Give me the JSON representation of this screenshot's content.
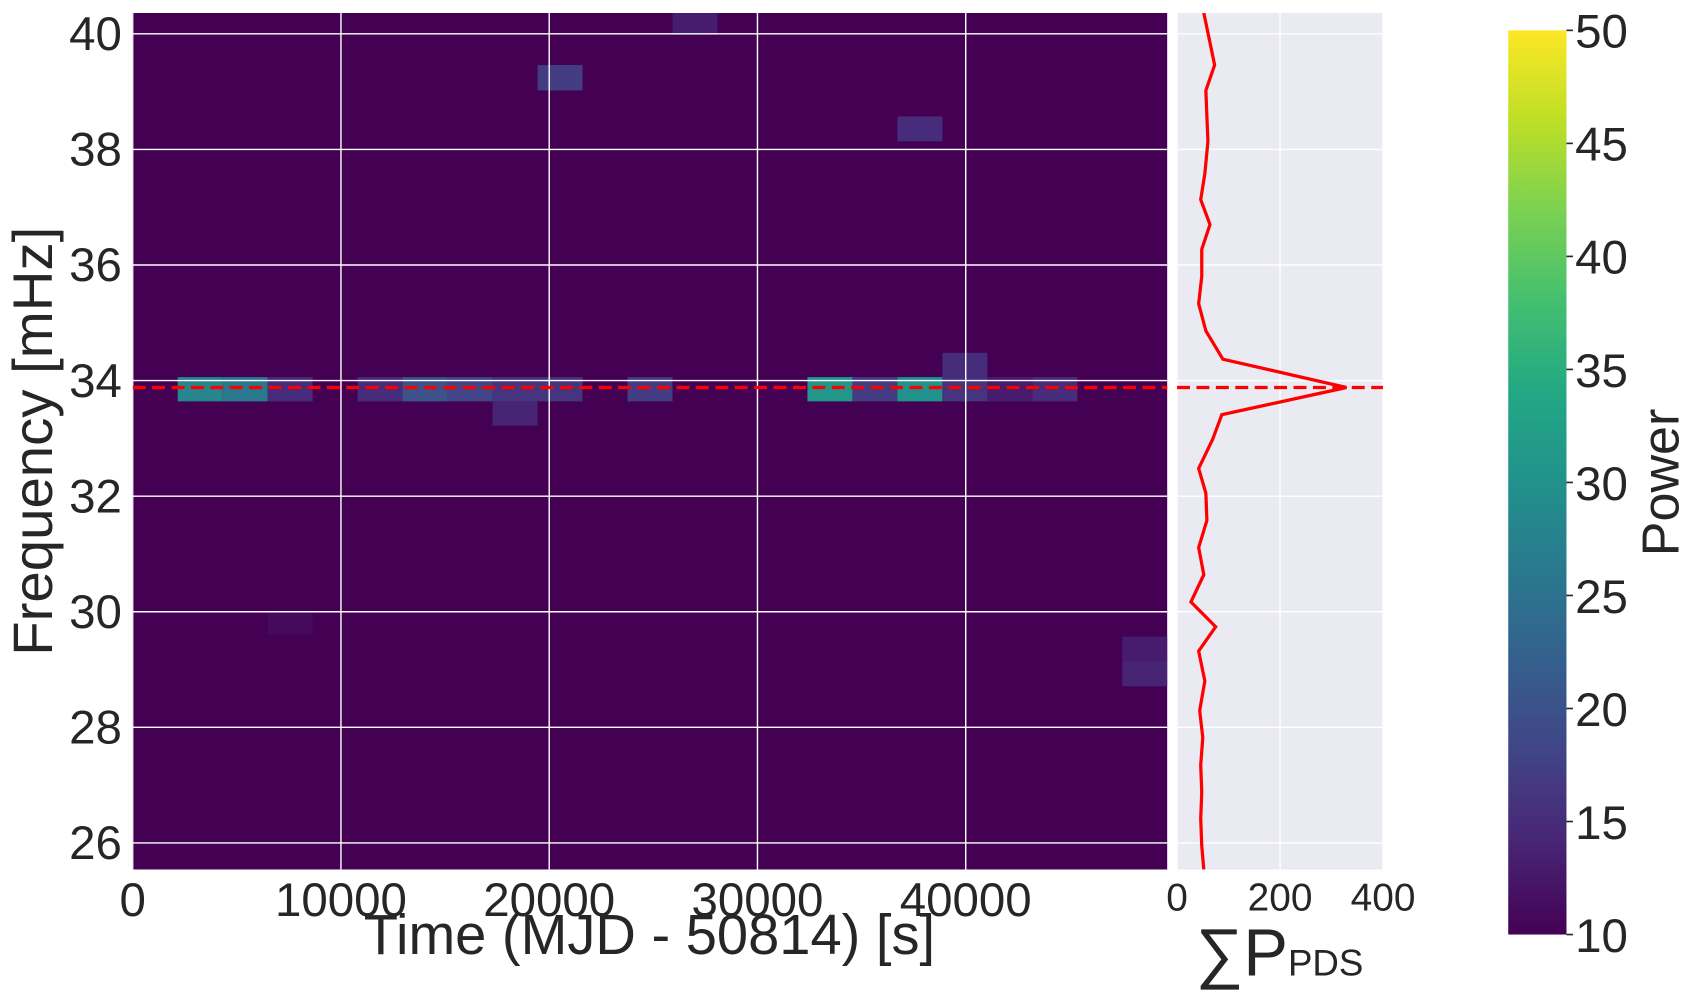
{
  "chart_data": [
    {
      "type": "heatmap",
      "xlabel": "Time (MJD - 50814) [s]",
      "ylabel": "Frequency [mHz]",
      "xlim": [
        0,
        49680
      ],
      "ylim": [
        25.54,
        40.36
      ],
      "xticks": [
        0,
        10000,
        20000,
        30000,
        40000
      ],
      "yticks": [
        26,
        28,
        30,
        32,
        34,
        36,
        38,
        40
      ],
      "grid": true,
      "colormap": "viridis",
      "background": 10,
      "cells": [
        {
          "t": [
            2160,
            4320
          ],
          "f": [
            33.64,
            34.06
          ],
          "value": 28
        },
        {
          "t": [
            4320,
            6480
          ],
          "f": [
            33.64,
            34.06
          ],
          "value": 26
        },
        {
          "t": [
            6480,
            8640
          ],
          "f": [
            33.64,
            34.06
          ],
          "value": 15
        },
        {
          "t": [
            10800,
            12960
          ],
          "f": [
            33.64,
            34.06
          ],
          "value": 15
        },
        {
          "t": [
            12960,
            15120
          ],
          "f": [
            33.64,
            34.06
          ],
          "value": 20
        },
        {
          "t": [
            15120,
            17280
          ],
          "f": [
            33.64,
            34.06
          ],
          "value": 18
        },
        {
          "t": [
            17280,
            19440
          ],
          "f": [
            33.64,
            34.06
          ],
          "value": 16
        },
        {
          "t": [
            19440,
            21600
          ],
          "f": [
            33.64,
            34.06
          ],
          "value": 16
        },
        {
          "t": [
            23760,
            25920
          ],
          "f": [
            33.64,
            34.06
          ],
          "value": 17
        },
        {
          "t": [
            32400,
            34560
          ],
          "f": [
            33.64,
            34.06
          ],
          "value": 31
        },
        {
          "t": [
            34560,
            36720
          ],
          "f": [
            33.64,
            34.06
          ],
          "value": 17
        },
        {
          "t": [
            36720,
            38880
          ],
          "f": [
            33.64,
            34.06
          ],
          "value": 30
        },
        {
          "t": [
            38880,
            41040
          ],
          "f": [
            33.64,
            34.06
          ],
          "value": 16
        },
        {
          "t": [
            41040,
            43200
          ],
          "f": [
            33.64,
            34.06
          ],
          "value": 13
        },
        {
          "t": [
            43200,
            45360
          ],
          "f": [
            33.64,
            34.06
          ],
          "value": 15
        },
        {
          "t": [
            38880,
            41040
          ],
          "f": [
            34.06,
            34.48
          ],
          "value": 15
        },
        {
          "t": [
            17280,
            19440
          ],
          "f": [
            33.22,
            33.64
          ],
          "value": 14
        },
        {
          "t": [
            19440,
            21600
          ],
          "f": [
            39.02,
            39.46
          ],
          "value": 17
        },
        {
          "t": [
            36720,
            38880
          ],
          "f": [
            38.14,
            38.57
          ],
          "value": 15
        },
        {
          "t": [
            25920,
            28080
          ],
          "f": [
            39.98,
            40.41
          ],
          "value": 13
        },
        {
          "t": [
            6480,
            8640
          ],
          "f": [
            29.6,
            29.98
          ],
          "value": 11
        },
        {
          "t": [
            47520,
            49680
          ],
          "f": [
            29.14,
            29.57
          ],
          "value": 13
        },
        {
          "t": [
            47520,
            49680
          ],
          "f": [
            28.71,
            29.14
          ],
          "value": 14
        }
      ],
      "marker_frequency": 33.88,
      "marker_color": "#ff0000",
      "colorbar": {
        "label": "Power",
        "lim": [
          10,
          50
        ],
        "ticks": [
          10,
          15,
          20,
          25,
          30,
          35,
          40,
          45,
          50
        ]
      }
    },
    {
      "type": "line",
      "xlabel": "∑P",
      "xlabel_sub": "PDS",
      "xlim": [
        0,
        400
      ],
      "xticks": [
        0,
        200,
        400
      ],
      "ylim": [
        25.54,
        40.36
      ],
      "yticks": [
        26,
        28,
        30,
        32,
        34,
        36,
        38,
        40
      ],
      "color": "#ff0000",
      "marker_frequency": 33.88,
      "frequencies": [
        40.36,
        39.46,
        39.02,
        38.57,
        38.14,
        37.58,
        37.13,
        36.7,
        36.27,
        35.8,
        35.33,
        34.86,
        34.37,
        33.88,
        33.41,
        32.98,
        32.48,
        32.05,
        31.58,
        31.11,
        30.64,
        30.17,
        29.74,
        29.32,
        28.8,
        28.29,
        27.82,
        27.35,
        26.88,
        26.42,
        25.95,
        25.54
      ],
      "values": [
        52,
        73,
        56,
        58,
        60,
        54,
        46,
        64,
        48,
        48,
        42,
        56,
        89,
        329,
        87,
        69,
        42,
        56,
        58,
        42,
        52,
        27,
        75,
        42,
        54,
        44,
        50,
        46,
        48,
        46,
        48,
        52
      ]
    }
  ]
}
